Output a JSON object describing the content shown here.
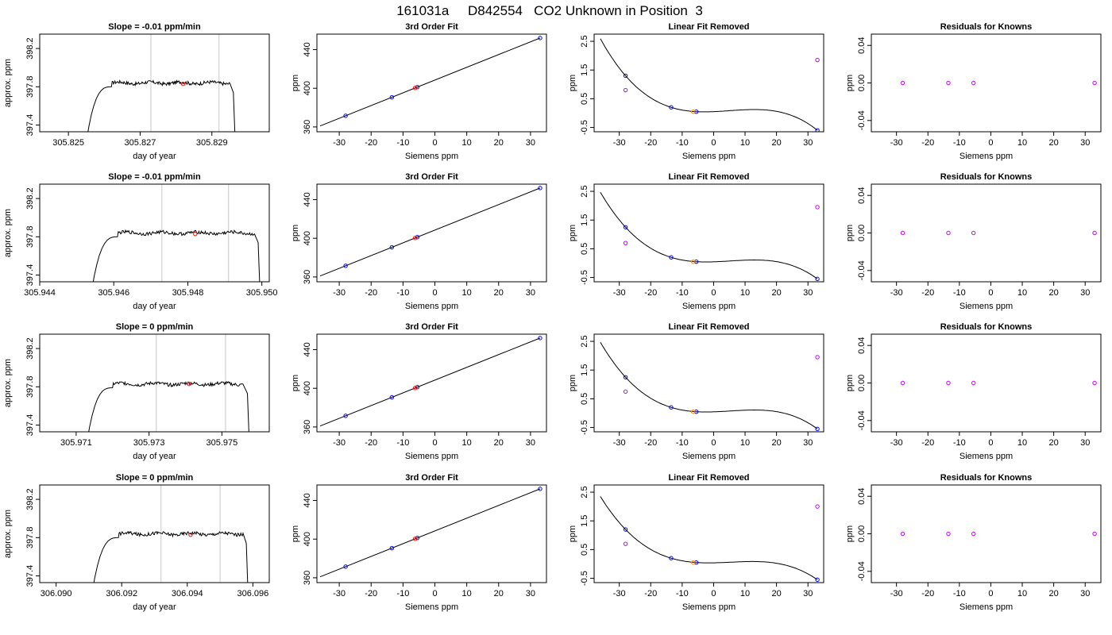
{
  "page_title": "161031a     D842554   CO2 Unknown in Position  3",
  "colors": {
    "trace": "#000000",
    "window_line": "#c8c8c8",
    "marker_red": "#ff0000",
    "marker_blue": "#0000ff",
    "marker_magenta": "#c000ff",
    "marker_orange": "#ff8c00"
  },
  "chart_data": [
    {
      "panel": "timeseries",
      "type": "line",
      "title": "Slope =  -0.01  ppm/min",
      "xlabel": "day of year",
      "ylabel": "approx. ppm",
      "xlim": [
        305.8242,
        305.8306
      ],
      "ylim": [
        397.33,
        398.35
      ],
      "xticks": [
        "305.825",
        "305.827",
        "305.829"
      ],
      "xtick_values": [
        305.825,
        305.827,
        305.829
      ],
      "yticks": [
        "397.4",
        "397.8",
        "398.2"
      ],
      "ytick_values": [
        397.4,
        397.8,
        398.2
      ],
      "rise_start": 305.8255,
      "rise_end": 305.8258,
      "plateau_start": 305.8262,
      "plateau_end": 305.8295,
      "fall_end": 305.8296,
      "plateau_level": 397.84,
      "window": [
        305.8273,
        305.8292
      ],
      "marker": {
        "x": 305.8282,
        "y": 397.83
      }
    },
    {
      "panel": "fit",
      "type": "scatter",
      "title": "3rd Order Fit",
      "xlabel": "Siemens ppm",
      "ylabel": "ppm",
      "xlim": [
        -37,
        35
      ],
      "ylim": [
        355,
        456
      ],
      "xticks": [
        "-30",
        "-20",
        "-10",
        "0",
        "10",
        "20",
        "30"
      ],
      "xtick_values": [
        -30,
        -20,
        -10,
        0,
        10,
        20,
        30
      ],
      "yticks": [
        "360",
        "400",
        "440"
      ],
      "ytick_values": [
        360,
        400,
        440
      ],
      "points_x": [
        -28,
        -13.5,
        -5.5,
        33
      ],
      "unknown_x": -6.2,
      "fit_x_range": [
        -36,
        33
      ],
      "fit_y_range": [
        361,
        452
      ]
    },
    {
      "panel": "residual",
      "type": "scatter",
      "title": "Linear Fit Removed",
      "xlabel": "Siemens ppm",
      "ylabel": "ppm",
      "xlim": [
        -38,
        35
      ],
      "ylim": [
        -0.65,
        2.75
      ],
      "xticks": [
        "-30",
        "-20",
        "-10",
        "0",
        "10",
        "20",
        "30"
      ],
      "xtick_values": [
        -30,
        -20,
        -10,
        0,
        10,
        20,
        30
      ],
      "yticks": [
        "-0.5",
        "0.5",
        "1.5",
        "2.5"
      ],
      "ytick_values": [
        -0.5,
        0.5,
        1.5,
        2.5
      ],
      "points": [
        [
          -28,
          1.3
        ],
        [
          -13.5,
          0.2
        ],
        [
          -5.5,
          0.05
        ],
        [
          33,
          -0.6
        ]
      ],
      "outliers": [
        [
          -28,
          0.8
        ],
        [
          33,
          1.85
        ]
      ],
      "unknown": [
        -6.5,
        0.05
      ],
      "curve_x_range": [
        -36,
        33
      ]
    },
    {
      "panel": "knowns",
      "type": "scatter",
      "title": "Residuals for Knowns",
      "xlabel": "Siemens ppm",
      "ylabel": "ppm",
      "xlim": [
        -38,
        35
      ],
      "ylim": [
        -0.052,
        0.052
      ],
      "xticks": [
        "-30",
        "-20",
        "-10",
        "0",
        "10",
        "20",
        "30"
      ],
      "xtick_values": [
        -30,
        -20,
        -10,
        0,
        10,
        20,
        30
      ],
      "yticks": [
        "-0.04",
        "0.00",
        "0.04"
      ],
      "ytick_values": [
        -0.04,
        0,
        0.04
      ],
      "points_x": [
        -28,
        -13.5,
        -5.5,
        33
      ],
      "value": 0.0
    },
    {
      "panel": "timeseries",
      "type": "line",
      "title": "Slope =  -0.01  ppm/min",
      "xlabel": "day of year",
      "ylabel": "approx. ppm",
      "xlim": [
        305.944,
        305.9502
      ],
      "ylim": [
        397.33,
        398.35
      ],
      "xticks": [
        "305.944",
        "305.946",
        "305.948",
        "305.950"
      ],
      "xtick_values": [
        305.944,
        305.946,
        305.948,
        305.95
      ],
      "yticks": [
        "397.4",
        "397.8",
        "398.2"
      ],
      "ytick_values": [
        397.4,
        397.8,
        398.2
      ],
      "rise_start": 305.9454,
      "rise_end": 305.9457,
      "plateau_start": 305.9461,
      "plateau_end": 305.9498,
      "fall_end": 305.9499,
      "plateau_level": 397.84,
      "window": [
        305.9473,
        305.9491
      ],
      "marker": {
        "x": 305.9482,
        "y": 397.83
      }
    },
    {
      "panel": "fit",
      "type": "scatter",
      "title": "3rd Order Fit",
      "xlabel": "Siemens ppm",
      "ylabel": "ppm",
      "xlim": [
        -37,
        35
      ],
      "ylim": [
        355,
        456
      ],
      "xticks": [
        "-30",
        "-20",
        "-10",
        "0",
        "10",
        "20",
        "30"
      ],
      "xtick_values": [
        -30,
        -20,
        -10,
        0,
        10,
        20,
        30
      ],
      "yticks": [
        "360",
        "400",
        "440"
      ],
      "ytick_values": [
        360,
        400,
        440
      ],
      "points_x": [
        -28,
        -13.5,
        -5.5,
        33
      ],
      "unknown_x": -6.2,
      "fit_x_range": [
        -36,
        33
      ],
      "fit_y_range": [
        361,
        452
      ]
    },
    {
      "panel": "residual",
      "type": "scatter",
      "title": "Linear Fit Removed",
      "xlabel": "Siemens ppm",
      "ylabel": "ppm",
      "xlim": [
        -38,
        35
      ],
      "ylim": [
        -0.65,
        2.75
      ],
      "xticks": [
        "-30",
        "-20",
        "-10",
        "0",
        "10",
        "20",
        "30"
      ],
      "xtick_values": [
        -30,
        -20,
        -10,
        0,
        10,
        20,
        30
      ],
      "yticks": [
        "-0.5",
        "0.5",
        "1.5",
        "2.5"
      ],
      "ytick_values": [
        -0.5,
        0.5,
        1.5,
        2.5
      ],
      "points": [
        [
          -28,
          1.25
        ],
        [
          -13.5,
          0.2
        ],
        [
          -5.5,
          0.05
        ],
        [
          33,
          -0.55
        ]
      ],
      "outliers": [
        [
          -28,
          0.7
        ],
        [
          33,
          1.95
        ]
      ],
      "unknown": [
        -6.5,
        0.05
      ],
      "curve_x_range": [
        -36,
        33
      ]
    },
    {
      "panel": "knowns",
      "type": "scatter",
      "title": "Residuals for Knowns",
      "xlabel": "Siemens ppm",
      "ylabel": "ppm",
      "xlim": [
        -38,
        35
      ],
      "ylim": [
        -0.052,
        0.052
      ],
      "xticks": [
        "-30",
        "-20",
        "-10",
        "0",
        "10",
        "20",
        "30"
      ],
      "xtick_values": [
        -30,
        -20,
        -10,
        0,
        10,
        20,
        30
      ],
      "yticks": [
        "-0.04",
        "0.00",
        "0.04"
      ],
      "ytick_values": [
        -0.04,
        0,
        0.04
      ],
      "points_x": [
        -28,
        -13.5,
        -5.5,
        33
      ],
      "value": 0.0
    },
    {
      "panel": "timeseries",
      "type": "line",
      "title": "Slope =  0  ppm/min",
      "xlabel": "day of year",
      "ylabel": "approx. ppm",
      "xlim": [
        305.97,
        305.9763
      ],
      "ylim": [
        397.33,
        398.35
      ],
      "xticks": [
        "305.971",
        "305.973",
        "305.975"
      ],
      "xtick_values": [
        305.971,
        305.973,
        305.975
      ],
      "yticks": [
        "397.4",
        "397.8",
        "398.2"
      ],
      "ytick_values": [
        397.4,
        397.8,
        398.2
      ],
      "rise_start": 305.9713,
      "rise_end": 305.9716,
      "plateau_start": 305.972,
      "plateau_end": 305.9756,
      "fall_end": 305.9757,
      "plateau_level": 397.83,
      "window": [
        305.9732,
        305.9751
      ],
      "marker": {
        "x": 305.9741,
        "y": 397.83
      }
    },
    {
      "panel": "fit",
      "type": "scatter",
      "title": "3rd Order Fit",
      "xlabel": "Siemens ppm",
      "ylabel": "ppm",
      "xlim": [
        -37,
        35
      ],
      "ylim": [
        355,
        456
      ],
      "xticks": [
        "-30",
        "-20",
        "-10",
        "0",
        "10",
        "20",
        "30"
      ],
      "xtick_values": [
        -30,
        -20,
        -10,
        0,
        10,
        20,
        30
      ],
      "yticks": [
        "360",
        "400",
        "440"
      ],
      "ytick_values": [
        360,
        400,
        440
      ],
      "points_x": [
        -28,
        -13.5,
        -5.5,
        33
      ],
      "unknown_x": -6.2,
      "fit_x_range": [
        -36,
        33
      ],
      "fit_y_range": [
        361,
        452
      ]
    },
    {
      "panel": "residual",
      "type": "scatter",
      "title": "Linear Fit Removed",
      "xlabel": "Siemens ppm",
      "ylabel": "ppm",
      "xlim": [
        -38,
        35
      ],
      "ylim": [
        -0.65,
        2.75
      ],
      "xticks": [
        "-30",
        "-20",
        "-10",
        "0",
        "10",
        "20",
        "30"
      ],
      "xtick_values": [
        -30,
        -20,
        -10,
        0,
        10,
        20,
        30
      ],
      "yticks": [
        "-0.5",
        "0.5",
        "1.5",
        "2.5"
      ],
      "ytick_values": [
        -0.5,
        0.5,
        1.5,
        2.5
      ],
      "points": [
        [
          -28,
          1.25
        ],
        [
          -13.5,
          0.2
        ],
        [
          -5.5,
          0.05
        ],
        [
          33,
          -0.55
        ]
      ],
      "outliers": [
        [
          -28,
          0.75
        ],
        [
          33,
          1.95
        ]
      ],
      "unknown": [
        -6.5,
        0.05
      ],
      "curve_x_range": [
        -36,
        33
      ]
    },
    {
      "panel": "knowns",
      "type": "scatter",
      "title": "Residuals for Knowns",
      "xlabel": "Siemens ppm",
      "ylabel": "ppm",
      "xlim": [
        -38,
        35
      ],
      "ylim": [
        -0.052,
        0.052
      ],
      "xticks": [
        "-30",
        "-20",
        "-10",
        "0",
        "10",
        "20",
        "30"
      ],
      "xtick_values": [
        -30,
        -20,
        -10,
        0,
        10,
        20,
        30
      ],
      "yticks": [
        "-0.04",
        "0.00",
        "0.04"
      ],
      "ytick_values": [
        -0.04,
        0,
        0.04
      ],
      "points_x": [
        -28,
        -13.5,
        -5.5,
        33
      ],
      "value": 0.0
    },
    {
      "panel": "timeseries",
      "type": "line",
      "title": "Slope =  0  ppm/min",
      "xlabel": "day of year",
      "ylabel": "approx. ppm",
      "xlim": [
        306.0895,
        306.0965
      ],
      "ylim": [
        397.33,
        398.35
      ],
      "xticks": [
        "306.090",
        "306.092",
        "306.094",
        "306.096"
      ],
      "xtick_values": [
        306.09,
        306.092,
        306.094,
        306.096
      ],
      "yticks": [
        "397.4",
        "397.8",
        "398.2"
      ],
      "ytick_values": [
        397.4,
        397.8,
        398.2
      ],
      "rise_start": 306.0911,
      "rise_end": 306.0914,
      "plateau_start": 306.0919,
      "plateau_end": 306.0957,
      "fall_end": 306.0958,
      "plateau_level": 397.84,
      "window": [
        306.0932,
        306.095
      ],
      "marker": {
        "x": 306.0941,
        "y": 397.83
      }
    },
    {
      "panel": "fit",
      "type": "scatter",
      "title": "3rd Order Fit",
      "xlabel": "Siemens ppm",
      "ylabel": "ppm",
      "xlim": [
        -37,
        35
      ],
      "ylim": [
        355,
        456
      ],
      "xticks": [
        "-30",
        "-20",
        "-10",
        "0",
        "10",
        "20",
        "30"
      ],
      "xtick_values": [
        -30,
        -20,
        -10,
        0,
        10,
        20,
        30
      ],
      "yticks": [
        "360",
        "400",
        "440"
      ],
      "ytick_values": [
        360,
        400,
        440
      ],
      "points_x": [
        -28,
        -13.5,
        -5.5,
        33
      ],
      "unknown_x": -6.2,
      "fit_x_range": [
        -36,
        33
      ],
      "fit_y_range": [
        361,
        452
      ]
    },
    {
      "panel": "residual",
      "type": "scatter",
      "title": "Linear Fit Removed",
      "xlabel": "Siemens ppm",
      "ylabel": "ppm",
      "xlim": [
        -38,
        35
      ],
      "ylim": [
        -0.65,
        2.75
      ],
      "xticks": [
        "-30",
        "-20",
        "-10",
        "0",
        "10",
        "20",
        "30"
      ],
      "xtick_values": [
        -30,
        -20,
        -10,
        0,
        10,
        20,
        30
      ],
      "yticks": [
        "-0.5",
        "0.5",
        "1.5",
        "2.5"
      ],
      "ytick_values": [
        -0.5,
        0.5,
        1.5,
        2.5
      ],
      "points": [
        [
          -28,
          1.2
        ],
        [
          -13.5,
          0.2
        ],
        [
          -5.5,
          0.05
        ],
        [
          33,
          -0.55
        ]
      ],
      "outliers": [
        [
          -28,
          0.7
        ],
        [
          33,
          2.0
        ]
      ],
      "unknown": [
        -6.5,
        0.05
      ],
      "curve_x_range": [
        -36,
        33
      ]
    },
    {
      "panel": "knowns",
      "type": "scatter",
      "title": "Residuals for Knowns",
      "xlabel": "Siemens ppm",
      "ylabel": "ppm",
      "xlim": [
        -38,
        35
      ],
      "ylim": [
        -0.052,
        0.052
      ],
      "xticks": [
        "-30",
        "-20",
        "-10",
        "0",
        "10",
        "20",
        "30"
      ],
      "xtick_values": [
        -30,
        -20,
        -10,
        0,
        10,
        20,
        30
      ],
      "yticks": [
        "-0.04",
        "0.00",
        "0.04"
      ],
      "ytick_values": [
        -0.04,
        0,
        0.04
      ],
      "points_x": [
        -28,
        -13.5,
        -5.5,
        33
      ],
      "value": 0.0
    }
  ]
}
